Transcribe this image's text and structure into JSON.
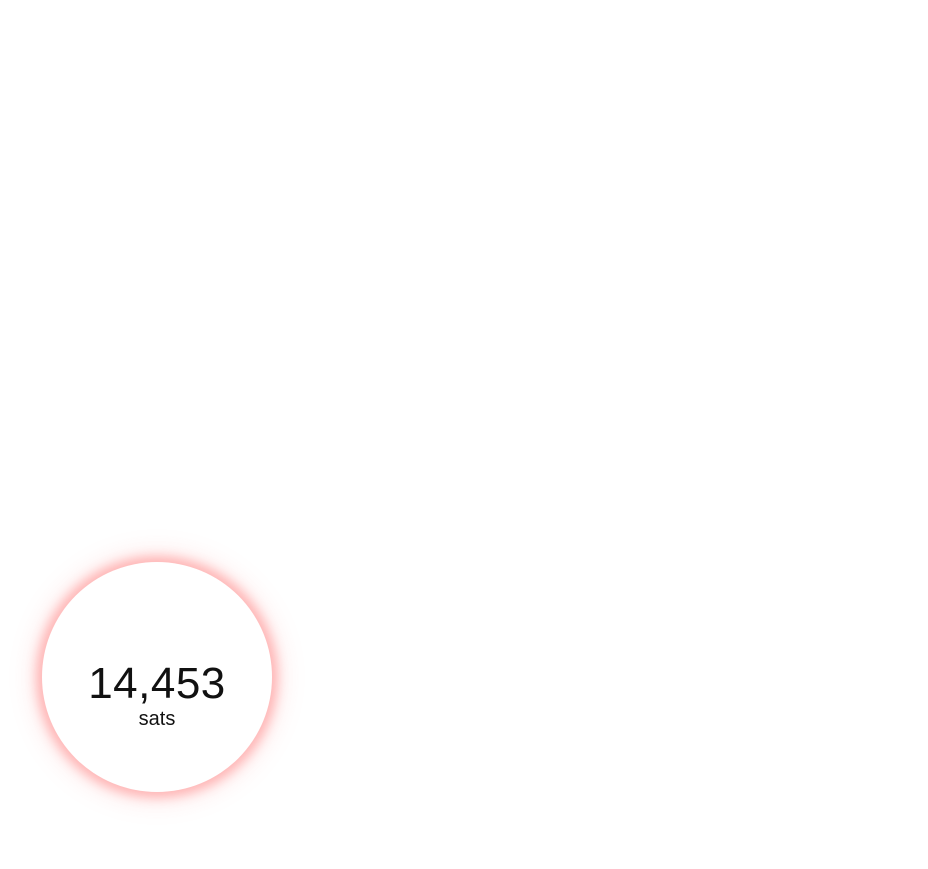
{
  "balance": {
    "amount": "14,453",
    "unit": "sats",
    "glow_color": "#ff6b6b"
  }
}
